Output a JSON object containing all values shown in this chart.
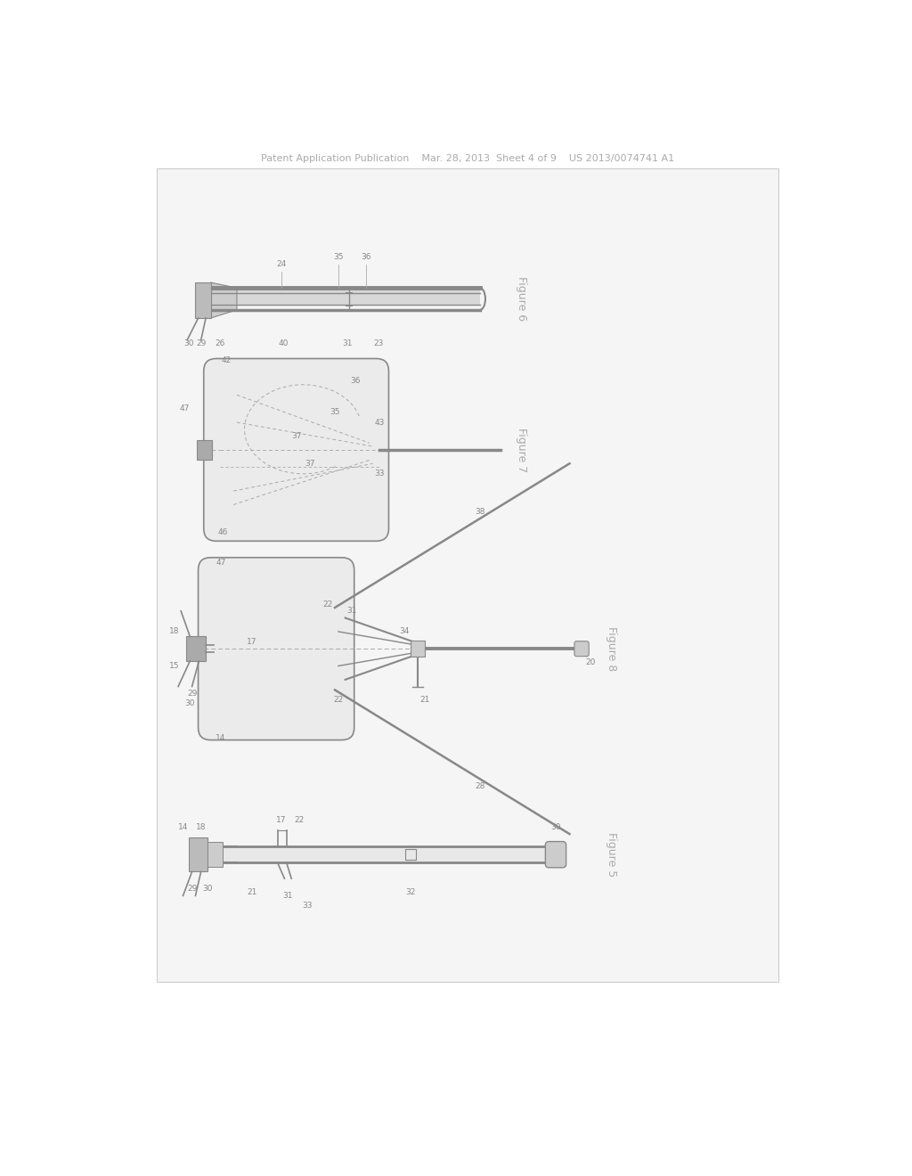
{
  "page_bg": "#ffffff",
  "panel_bg": "#f0f0f0",
  "line_color": "#aaaaaa",
  "dark_line": "#888888",
  "med_line": "#999999",
  "text_color": "#888888",
  "header": "Patent Application Publication    Mar. 28, 2013  Sheet 4 of 9    US 2013/0074741 A1",
  "fig6_label": "Figure 6",
  "fig7_label": "Figure 7",
  "fig8_label": "Figure 8",
  "fig5_label": "Figure 5"
}
